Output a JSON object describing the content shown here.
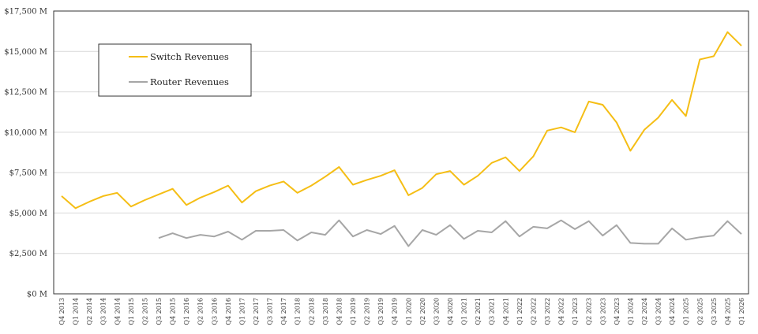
{
  "chart_data": {
    "type": "line",
    "title": "",
    "xlabel": "",
    "ylabel": "",
    "ylim": [
      0,
      17500
    ],
    "y_ticks": [
      0,
      2500,
      5000,
      7500,
      10000,
      12500,
      15000,
      17500
    ],
    "y_tick_labels": [
      "$0 M",
      "$2,500 M",
      "$5,000 M",
      "$7,500 M",
      "$10,000 M",
      "$12,500 M",
      "$15,000 M",
      "$17,500 M"
    ],
    "grid": "horizontal",
    "legend_position": "top-left",
    "categories": [
      "Q4 2013",
      "Q1 2014",
      "Q2 2014",
      "Q3 2014",
      "Q4 2014",
      "Q1 2015",
      "Q2 2015",
      "Q3 2015",
      "Q4 2015",
      "Q1 2016",
      "Q2 2016",
      "Q3 2016",
      "Q4 2016",
      "Q1 2017",
      "Q2 2017",
      "Q3 2017",
      "Q4 2017",
      "Q1 2018",
      "Q2 2018",
      "Q3 2018",
      "Q4 2018",
      "Q1 2019",
      "Q2 2019",
      "Q3 2019",
      "Q4 2019",
      "Q1 2020",
      "Q2 2020",
      "Q3 2020",
      "Q4 2020",
      "Q1 2021",
      "Q2 2021",
      "Q3 2021",
      "Q4 2021",
      "Q1 2022",
      "Q2 2022",
      "Q3 2022",
      "Q4 2022",
      "Q1 2023",
      "Q2 2023",
      "Q3 2023",
      "Q4 2023",
      "Q1 2024",
      "Q2 2024",
      "Q3 2024",
      "Q4 2024",
      "Q1 2025",
      "Q2 2025",
      "Q3 2025",
      "Q4 2025",
      "Q1 2026"
    ],
    "series": [
      {
        "name": "Switch Revenues",
        "color": "#F5BE15",
        "values": [
          6050,
          5300,
          5700,
          6050,
          6250,
          5400,
          5800,
          6150,
          6500,
          5500,
          5950,
          6300,
          6700,
          5650,
          6350,
          6700,
          6950,
          6250,
          6700,
          7250,
          7850,
          6750,
          7050,
          7300,
          7650,
          6100,
          6550,
          7400,
          7600,
          6750,
          7300,
          8100,
          8450,
          7600,
          8500,
          10100,
          10300,
          10000,
          11900,
          11700,
          10600,
          8850,
          10150,
          10900,
          12000,
          11000,
          14500,
          14700,
          16200,
          15350
        ]
      },
      {
        "name": "Router Revenues",
        "color": "#A6A6A6",
        "values": [
          null,
          null,
          null,
          null,
          null,
          null,
          null,
          3450,
          3750,
          3450,
          3650,
          3550,
          3850,
          3350,
          3900,
          3900,
          3950,
          3300,
          3800,
          3650,
          4550,
          3550,
          3950,
          3700,
          4200,
          2950,
          3950,
          3650,
          4250,
          3400,
          3900,
          3800,
          4500,
          3550,
          4150,
          4050,
          4550,
          4000,
          4500,
          3600,
          4250,
          3150,
          3100,
          3100,
          4050,
          3350,
          3500,
          3600,
          4500,
          3700
        ]
      }
    ]
  }
}
